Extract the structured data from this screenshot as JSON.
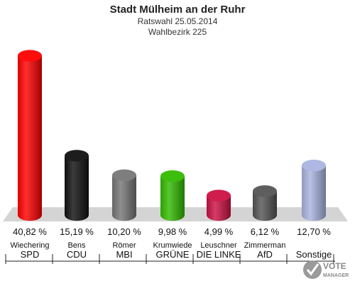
{
  "header": {
    "title": "Stadt Mülheim an der Ruhr",
    "subtitle": "Ratswahl 25.05.2014",
    "district": "Wahlbezirk 225"
  },
  "chart_data": {
    "type": "bar",
    "title": "Stadt Mülheim an der Ruhr",
    "subtitle": "Ratswahl 25.05.2014 / Wahlbezirk 225",
    "categories": [
      "SPD",
      "CDU",
      "MBI",
      "GRÜNE",
      "DIE LINKE",
      "AfD",
      "Sonstige"
    ],
    "candidates": [
      "Wiechering",
      "Bens",
      "Römer",
      "Krumwiede",
      "Leuschner",
      "Zimmerman",
      ""
    ],
    "values": [
      40.82,
      15.19,
      10.2,
      9.98,
      4.99,
      6.12,
      12.7
    ],
    "value_labels": [
      "40,82 %",
      "15,19 %",
      "10,20 %",
      "9,98 %",
      "4,99 %",
      "6,12 %",
      "12,70 %"
    ],
    "colors": [
      "#ff0000",
      "#111111",
      "#777777",
      "#33bb00",
      "#cc1144",
      "#555555",
      "#aab4e0"
    ],
    "ylim": [
      0,
      42
    ],
    "grid": false,
    "legend": "none"
  },
  "logo": {
    "line1": "VOTE",
    "line2": "MANAGER"
  }
}
